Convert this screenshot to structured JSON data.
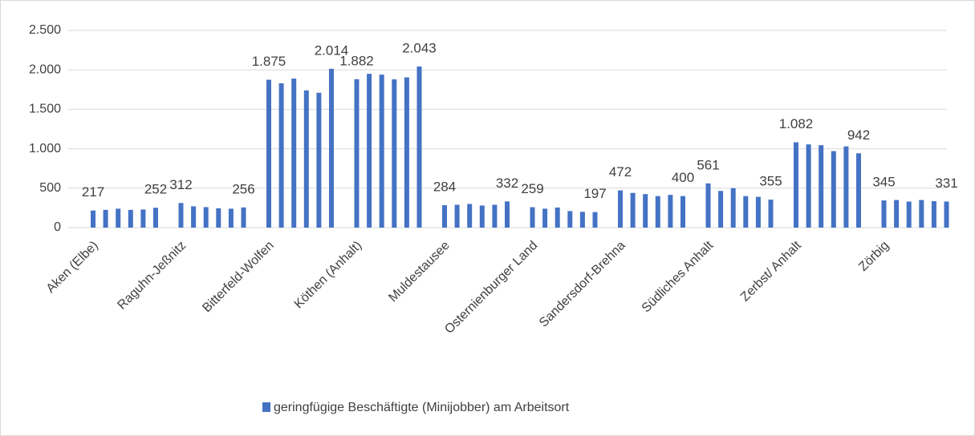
{
  "chart_data": {
    "type": "bar",
    "categories": [
      "Aken (Elbe)",
      null,
      null,
      null,
      null,
      null,
      "Raguhn-Jeßnitz",
      null,
      null,
      null,
      null,
      null,
      "Bitterfeld-Wolfen",
      null,
      null,
      null,
      null,
      null,
      "Köthen (Anhalt)",
      null,
      null,
      null,
      null,
      null,
      "Muldestausee",
      null,
      null,
      null,
      null,
      null,
      "Osternienburger Land",
      null,
      null,
      null,
      null,
      null,
      "Sandersdorf-Brehna",
      null,
      null,
      null,
      null,
      null,
      "Südliches Anhalt",
      null,
      null,
      null,
      null,
      null,
      "Zerbst/ Anhalt",
      null,
      null,
      null,
      null,
      null,
      "Zörbig",
      null,
      null,
      null,
      null,
      null
    ],
    "series": [
      {
        "name": "geringfügige Beschäftigte (Minijobber) am Arbeitsort",
        "color": "#4472c4",
        "values": [
          217,
          225,
          240,
          225,
          230,
          252,
          312,
          270,
          260,
          245,
          240,
          256,
          1875,
          1830,
          1890,
          1740,
          1710,
          2014,
          1882,
          1950,
          1940,
          1880,
          1905,
          2043,
          284,
          290,
          300,
          280,
          290,
          332,
          259,
          240,
          255,
          210,
          200,
          197,
          472,
          440,
          425,
          400,
          415,
          400,
          561,
          465,
          500,
          400,
          390,
          355,
          1082,
          1055,
          1045,
          970,
          1030,
          942,
          345,
          350,
          330,
          350,
          335,
          331
        ],
        "value_labels": [
          "217",
          null,
          null,
          null,
          null,
          "252",
          "312",
          null,
          null,
          null,
          null,
          "256",
          "1.875",
          null,
          null,
          null,
          null,
          "2.014",
          "1.882",
          null,
          null,
          null,
          null,
          "2.043",
          "284",
          null,
          null,
          null,
          null,
          "332",
          "259",
          null,
          null,
          null,
          null,
          "197",
          "472",
          null,
          null,
          null,
          null,
          "400",
          "561",
          null,
          null,
          null,
          null,
          "355",
          "1.082",
          null,
          null,
          null,
          null,
          "942",
          "345",
          null,
          null,
          null,
          null,
          "331"
        ]
      }
    ],
    "ylim": [
      0,
      2500
    ],
    "yticks": [
      0,
      500,
      {
        "value": 1000,
        "label": "1.000"
      },
      {
        "value": 1500,
        "label": "1.500"
      },
      {
        "value": 2000,
        "label": "2.000"
      },
      {
        "value": 2500,
        "label": "2.500"
      }
    ],
    "grid": true,
    "legend": "bottom"
  }
}
